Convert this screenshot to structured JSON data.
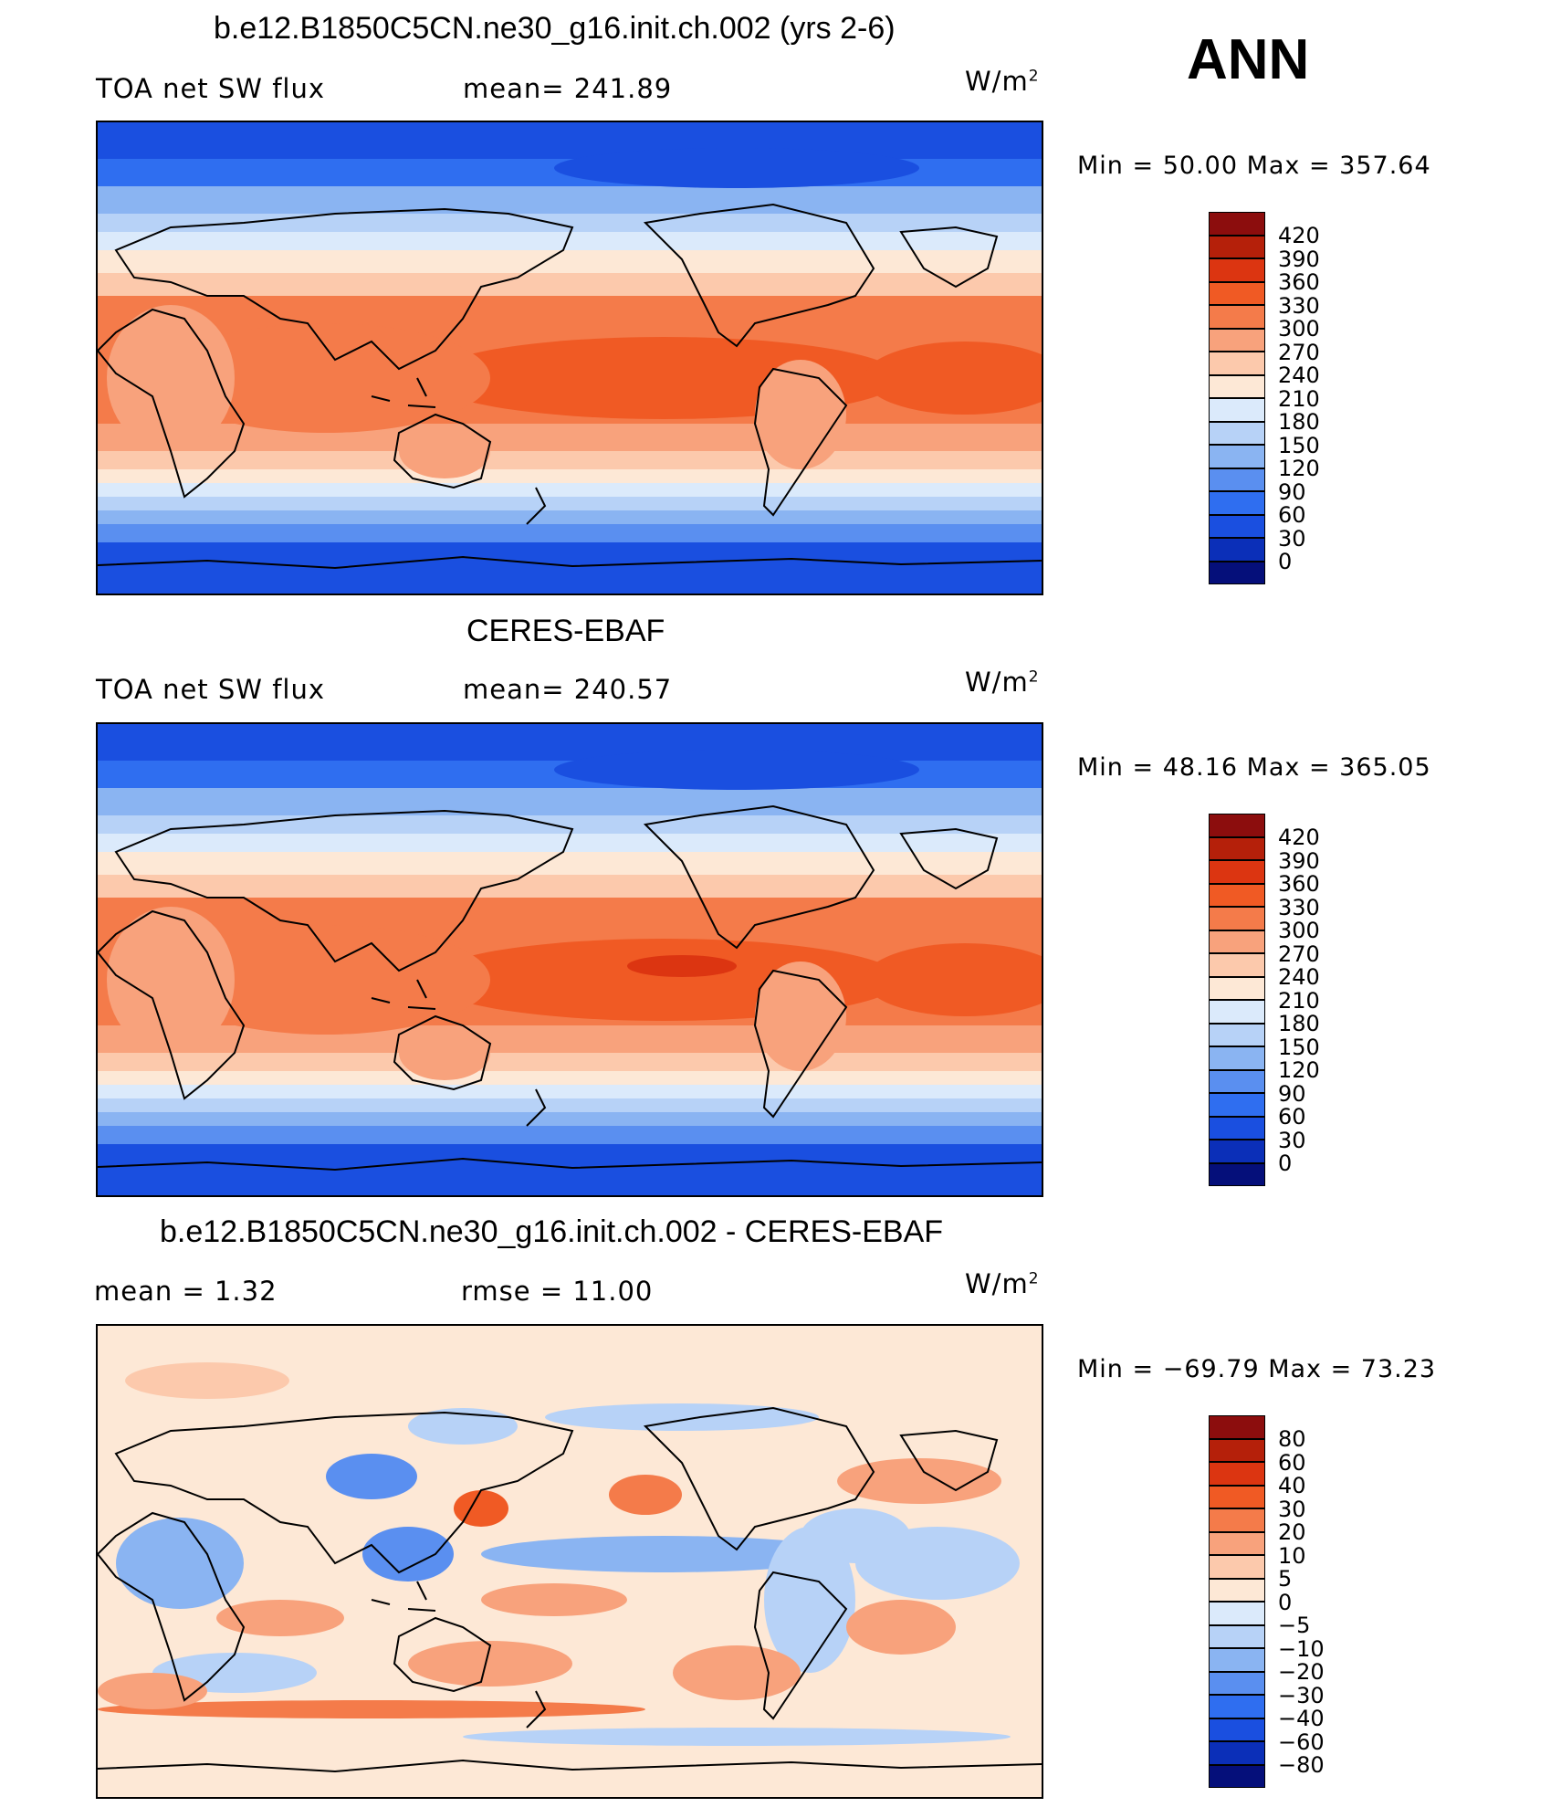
{
  "header": {
    "season": "ANN"
  },
  "panels": [
    {
      "title": "b.e12.B1850C5CN.ne30_g16.init.ch.002 (yrs 2-6)",
      "left_text": "TOA net SW flux",
      "mid_text": "mean= 241.89",
      "unit_base": "W/m",
      "unit_exp": "2",
      "minmax_text": "Min =   50.00 Max = 357.64",
      "stats": {
        "mean": 241.89,
        "min": 50.0,
        "max": 357.64
      },
      "colorbar": {
        "labels": [
          "420",
          "390",
          "360",
          "330",
          "300",
          "270",
          "240",
          "210",
          "180",
          "150",
          "120",
          "90",
          "60",
          "30",
          "0"
        ],
        "colors": [
          "#8c0d0d",
          "#b5200a",
          "#dc3511",
          "#f05a24",
          "#f47b4a",
          "#f8a27c",
          "#fcc9ac",
          "#fde8d6",
          "#dbeafb",
          "#b7d2f7",
          "#8ab4f2",
          "#5a8ff0",
          "#2f6ef0",
          "#1a4fe0",
          "#0b2fb8",
          "#050f7a"
        ]
      },
      "field": "sw_model"
    },
    {
      "title": "CERES-EBAF",
      "left_text": "TOA net SW flux",
      "mid_text": "mean= 240.57",
      "unit_base": "W/m",
      "unit_exp": "2",
      "minmax_text": "Min =   48.16 Max = 365.05",
      "stats": {
        "mean": 240.57,
        "min": 48.16,
        "max": 365.05
      },
      "colorbar": {
        "labels": [
          "420",
          "390",
          "360",
          "330",
          "300",
          "270",
          "240",
          "210",
          "180",
          "150",
          "120",
          "90",
          "60",
          "30",
          "0"
        ],
        "colors": [
          "#8c0d0d",
          "#b5200a",
          "#dc3511",
          "#f05a24",
          "#f47b4a",
          "#f8a27c",
          "#fcc9ac",
          "#fde8d6",
          "#dbeafb",
          "#b7d2f7",
          "#8ab4f2",
          "#5a8ff0",
          "#2f6ef0",
          "#1a4fe0",
          "#0b2fb8",
          "#050f7a"
        ]
      },
      "field": "sw_obs"
    },
    {
      "title": "b.e12.B1850C5CN.ne30_g16.init.ch.002 - CERES-EBAF",
      "left_text": "mean =     1.32",
      "mid_text": "rmse =    11.00",
      "unit_base": "W/m",
      "unit_exp": "2",
      "minmax_text": "Min = −69.79 Max =   73.23",
      "stats": {
        "mean": 1.32,
        "rmse": 11.0,
        "min": -69.79,
        "max": 73.23
      },
      "colorbar": {
        "labels": [
          "80",
          "60",
          "40",
          "30",
          "20",
          "10",
          "5",
          "0",
          "−5",
          "−10",
          "−20",
          "−30",
          "−40",
          "−60",
          "−80"
        ],
        "colors": [
          "#8c0d0d",
          "#b5200a",
          "#dc3511",
          "#f05a24",
          "#f47b4a",
          "#f8a27c",
          "#fcc9ac",
          "#fde8d6",
          "#dbeafb",
          "#b7d2f7",
          "#8ab4f2",
          "#5a8ff0",
          "#2f6ef0",
          "#1a4fe0",
          "#0b2fb8",
          "#050f7a"
        ]
      },
      "field": "sw_diff"
    }
  ]
}
